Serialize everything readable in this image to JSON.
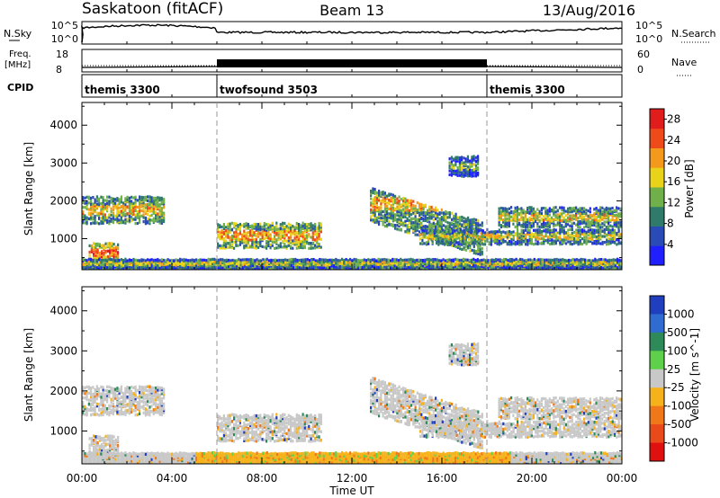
{
  "header": {
    "station": "Saskatoon (fitACF)",
    "beam": "Beam 13",
    "date": "13/Aug/2016"
  },
  "top_panels": {
    "noise": {
      "left_label": "N.Sky",
      "left_ticks": [
        "10^5",
        "10^0"
      ],
      "right_label": "N.Search",
      "right_ticks": [
        "10^5",
        "10^0"
      ]
    },
    "freq": {
      "left_label_1": "Freq.",
      "left_label_2": "[MHz]",
      "left_ticks": [
        "18",
        "8"
      ],
      "right_label": "Nave",
      "right_ticks": [
        "60",
        "0"
      ]
    },
    "cpid": {
      "label": "CPID",
      "modes": [
        {
          "name": "themis 3300",
          "start_hour": 0
        },
        {
          "name": "twofsound 3503",
          "start_hour": 6
        },
        {
          "name": "themis 3300",
          "start_hour": 18
        }
      ]
    }
  },
  "chart_data": [
    {
      "type": "heatmap",
      "parameter": "Power",
      "ylabel": "Slant Range [km]",
      "xlabel": "",
      "x_range_hours": [
        0,
        24
      ],
      "ylim": [
        180,
        4600
      ],
      "y_ticks": [
        1000,
        2000,
        3000,
        4000
      ],
      "colorbar": {
        "label": "Power [dB]",
        "ticks": [
          4,
          8,
          12,
          16,
          20,
          24,
          28
        ],
        "range": [
          0,
          30
        ],
        "colors": [
          "#1f1fff",
          "#2a4bb5",
          "#2f7a6a",
          "#6fb04a",
          "#e8d21a",
          "#f39a1c",
          "#ef4a1a",
          "#e01c1c"
        ]
      },
      "echo_regions": [
        {
          "t": [
            0.0,
            3.6
          ],
          "r": [
            1450,
            2150
          ],
          "value": 12
        },
        {
          "t": [
            0.3,
            1.6
          ],
          "r": [
            400,
            900
          ],
          "value": 18
        },
        {
          "t": [
            6.0,
            10.6
          ],
          "r": [
            800,
            1450
          ],
          "value": 14
        },
        {
          "t": [
            0.0,
            24.0
          ],
          "r": [
            250,
            520
          ],
          "value": 9
        },
        {
          "t": [
            12.8,
            17.8
          ],
          "r": [
            1500,
            2400
          ],
          "value": 12
        },
        {
          "t": [
            15.0,
            24.0
          ],
          "r": [
            900,
            1300
          ],
          "value": 10
        },
        {
          "t": [
            18.5,
            24.0
          ],
          "r": [
            1350,
            1850
          ],
          "value": 11
        },
        {
          "t": [
            16.3,
            17.6
          ],
          "r": [
            2700,
            3200
          ],
          "value": 7
        }
      ],
      "dashed_lines_hours": [
        6,
        18
      ]
    },
    {
      "type": "heatmap",
      "parameter": "Velocity",
      "ylabel": "Slant Range [km]",
      "xlabel": "Time UT",
      "x_range_hours": [
        0,
        24
      ],
      "x_tick_labels": [
        "00:00",
        "04:00",
        "08:00",
        "12:00",
        "16:00",
        "20:00",
        "00:00"
      ],
      "ylim": [
        180,
        4600
      ],
      "y_ticks": [
        1000,
        2000,
        3000,
        4000
      ],
      "colorbar": {
        "label": "Velocity [m s^-1]",
        "ticks": [
          "1000",
          "500",
          "100",
          "25",
          "-25",
          "-100",
          "-500",
          "-1000"
        ],
        "colors": [
          "#1f3fbf",
          "#2f6bd0",
          "#2f8a5a",
          "#5fd04a",
          "#c8c8c8",
          "#f6b21a",
          "#f07818",
          "#e84a1a",
          "#e01010"
        ]
      },
      "dashed_lines_hours": [
        6,
        18
      ]
    }
  ]
}
